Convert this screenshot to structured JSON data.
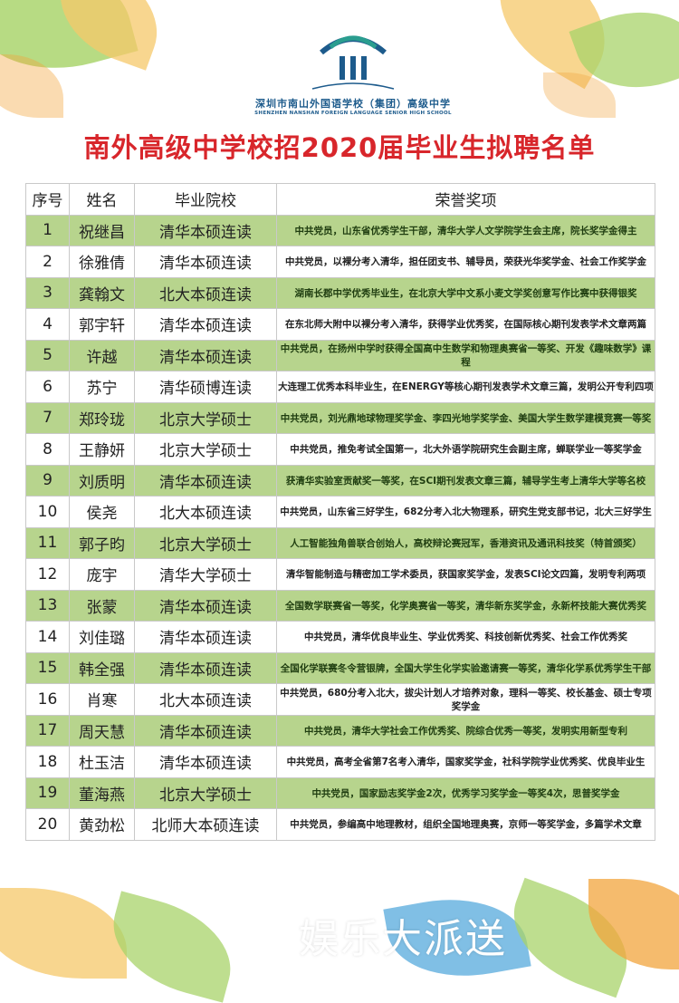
{
  "logo": {
    "name_cn": "深圳市南山外国语学校（集团）高级中学",
    "name_en": "SHENZHEN NANSHAN FOREIGN LANGUAGE SENIOR HIGH SCHOOL"
  },
  "title": "南外高级中学校招2020届毕业生拟聘名单",
  "table": {
    "headers": [
      "序号",
      "姓名",
      "毕业院校",
      "荣誉奖项"
    ],
    "rows": [
      {
        "no": "1",
        "name": "祝继昌",
        "school": "清华本硕连读",
        "honors": "中共党员，山东省优秀学生干部，清华大学人文学院学生会主席，院长奖学金得主"
      },
      {
        "no": "2",
        "name": "徐雅倩",
        "school": "清华本硕连读",
        "honors": "中共党员，以裸分考入清华，担任团支书、辅导员，荣获光华奖学金、社会工作奖学金"
      },
      {
        "no": "3",
        "name": "龚翰文",
        "school": "北大本硕连读",
        "honors": "湖南长郡中学优秀毕业生，在北京大学中文系小麦文学奖创意写作比赛中获得银奖"
      },
      {
        "no": "4",
        "name": "郭宇轩",
        "school": "清华本硕连读",
        "honors": "在东北师大附中以裸分考入清华，获得学业优秀奖，在国际核心期刊发表学术文章两篇"
      },
      {
        "no": "5",
        "name": "许越",
        "school": "清华本硕连读",
        "honors": "中共党员，在扬州中学时获得全国高中生数学和物理奥赛省一等奖、开发《趣味数学》课程"
      },
      {
        "no": "6",
        "name": "苏宁",
        "school": "清华硕博连读",
        "honors": "大连理工优秀本科毕业生，在ENERGY等核心期刊发表学术文章三篇，发明公开专利四项"
      },
      {
        "no": "7",
        "name": "郑玲珑",
        "school": "北京大学硕士",
        "honors": "中共党员，刘光鼎地球物理奖学金、李四光地学奖学金、美国大学生数学建模竞赛一等奖"
      },
      {
        "no": "8",
        "name": "王静妍",
        "school": "北京大学硕士",
        "honors": "中共党员，推免考试全国第一，北大外语学院研究生会副主席，蝉联学业一等奖学金"
      },
      {
        "no": "9",
        "name": "刘质明",
        "school": "清华本硕连读",
        "honors": "获清华实验室贡献奖一等奖，在SCI期刊发表文章三篇，辅导学生考上清华大学等名校"
      },
      {
        "no": "10",
        "name": "侯尧",
        "school": "北大本硕连读",
        "honors": "中共党员，山东省三好学生，682分考入北大物理系，研究生党支部书记，北大三好学生"
      },
      {
        "no": "11",
        "name": "郭子昀",
        "school": "北京大学硕士",
        "honors": "人工智能独角兽联合创始人，高校辩论赛冠军，香港资讯及通讯科技奖（特首颁奖）"
      },
      {
        "no": "12",
        "name": "庞宇",
        "school": "清华大学硕士",
        "honors": "清华智能制造与精密加工学术委员，获国家奖学金，发表SCI论文四篇，发明专利两项"
      },
      {
        "no": "13",
        "name": "张蒙",
        "school": "清华本硕连读",
        "honors": "全国数学联赛省一等奖，化学奥赛省一等奖，清华新东奖学金，永新杯技能大赛优秀奖"
      },
      {
        "no": "14",
        "name": "刘佳璐",
        "school": "清华本硕连读",
        "honors": "中共党员，清华优良毕业生、学业优秀奖、科技创新优秀奖、社会工作优秀奖"
      },
      {
        "no": "15",
        "name": "韩全强",
        "school": "清华本硕连读",
        "honors": "全国化学联赛冬令营银牌，全国大学生化学实验邀请赛一等奖，清华化学系优秀学生干部"
      },
      {
        "no": "16",
        "name": "肖寒",
        "school": "北大本硕连读",
        "honors": "中共党员，680分考入北大，拔尖计划人才培养对象，理科一等奖、校长基金、硕士专项奖学金"
      },
      {
        "no": "17",
        "name": "周天慧",
        "school": "清华本硕连读",
        "honors": "中共党员，清华大学社会工作优秀奖、院综合优秀一等奖，发明实用新型专利"
      },
      {
        "no": "18",
        "name": "杜玉洁",
        "school": "清华本硕连读",
        "honors": "中共党员，高考全省第7名考入清华，国家奖学金，社科学院学业优秀奖、优良毕业生"
      },
      {
        "no": "19",
        "name": "董海燕",
        "school": "北京大学硕士",
        "honors": "中共党员，国家励志奖学金2次，优秀学习奖学金一等奖4次，思普奖学金"
      },
      {
        "no": "20",
        "name": "黄劲松",
        "school": "北师大本硕连读",
        "honors": "中共党员，参编高中地理教材，组织全国地理奥赛，京师一等奖学金，多篇学术文章"
      }
    ]
  },
  "watermark": "娱乐大派送",
  "colors": {
    "title": "#d8262b",
    "row_green": "#b7d48d",
    "logo_blue": "#1d5b8c"
  }
}
